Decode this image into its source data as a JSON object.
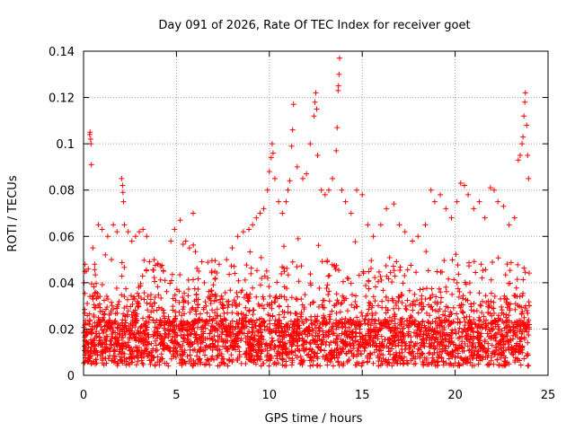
{
  "chart_data": {
    "type": "scatter",
    "title": "Day 091 of 2026, Rate Of TEC Index for receiver goet",
    "xlabel": "GPS time / hours",
    "ylabel": "ROTI / TECUs",
    "xlim": [
      0,
      25
    ],
    "ylim": [
      0,
      0.14
    ],
    "x_ticks": [
      0,
      5,
      10,
      15,
      20,
      25
    ],
    "x_tick_labels": [
      "0",
      "5",
      "10",
      "15",
      "20",
      "25"
    ],
    "y_ticks": [
      0,
      0.02,
      0.04,
      0.06,
      0.08,
      0.1,
      0.12,
      0.14
    ],
    "y_tick_labels": [
      "0",
      "0.02",
      "0.04",
      "0.06",
      "0.08",
      "0.1",
      "0.12",
      "0.14"
    ],
    "grid": true,
    "marker": "plus",
    "marker_color": "#ff0000",
    "data_time_range_hours": [
      0,
      24
    ],
    "series": [
      {
        "points": [
          [
            0.08,
            0.048
          ],
          [
            0.15,
            0.045
          ],
          [
            0.25,
            0.046
          ],
          [
            0.33,
            0.104
          ],
          [
            0.35,
            0.105
          ],
          [
            0.38,
            0.102
          ],
          [
            0.4,
            0.1
          ],
          [
            0.42,
            0.091
          ],
          [
            0.5,
            0.055
          ],
          [
            0.6,
            0.048
          ],
          [
            0.8,
            0.065
          ],
          [
            1.0,
            0.063
          ],
          [
            1.3,
            0.06
          ],
          [
            1.6,
            0.065
          ],
          [
            1.8,
            0.062
          ],
          [
            2.05,
            0.085
          ],
          [
            2.1,
            0.082
          ],
          [
            2.12,
            0.079
          ],
          [
            2.15,
            0.075
          ],
          [
            2.2,
            0.065
          ],
          [
            2.4,
            0.062
          ],
          [
            2.6,
            0.058
          ],
          [
            2.8,
            0.06
          ],
          [
            3.0,
            0.062
          ],
          [
            3.2,
            0.063
          ],
          [
            3.4,
            0.06
          ],
          [
            3.8,
            0.05
          ],
          [
            4.0,
            0.048
          ],
          [
            4.3,
            0.045
          ],
          [
            4.7,
            0.058
          ],
          [
            4.9,
            0.063
          ],
          [
            5.2,
            0.067
          ],
          [
            5.5,
            0.058
          ],
          [
            5.7,
            0.055
          ],
          [
            5.9,
            0.07
          ],
          [
            6.2,
            0.045
          ],
          [
            6.5,
            0.04
          ],
          [
            6.9,
            0.045
          ],
          [
            7.3,
            0.048
          ],
          [
            7.7,
            0.05
          ],
          [
            8.0,
            0.055
          ],
          [
            8.3,
            0.06
          ],
          [
            8.6,
            0.062
          ],
          [
            8.9,
            0.063
          ],
          [
            9.1,
            0.065
          ],
          [
            9.3,
            0.068
          ],
          [
            9.5,
            0.07
          ],
          [
            9.7,
            0.072
          ],
          [
            9.9,
            0.08
          ],
          [
            10.0,
            0.088
          ],
          [
            10.1,
            0.094
          ],
          [
            10.15,
            0.1
          ],
          [
            10.2,
            0.096
          ],
          [
            10.3,
            0.085
          ],
          [
            10.5,
            0.075
          ],
          [
            10.7,
            0.07
          ],
          [
            10.9,
            0.075
          ],
          [
            11.0,
            0.08
          ],
          [
            11.1,
            0.084
          ],
          [
            11.2,
            0.099
          ],
          [
            11.25,
            0.106
          ],
          [
            11.3,
            0.117
          ],
          [
            11.5,
            0.09
          ],
          [
            11.8,
            0.085
          ],
          [
            12.0,
            0.087
          ],
          [
            12.2,
            0.1
          ],
          [
            12.4,
            0.112
          ],
          [
            12.45,
            0.118
          ],
          [
            12.5,
            0.122
          ],
          [
            12.55,
            0.115
          ],
          [
            12.6,
            0.095
          ],
          [
            12.8,
            0.08
          ],
          [
            13.0,
            0.078
          ],
          [
            13.2,
            0.08
          ],
          [
            13.4,
            0.085
          ],
          [
            13.6,
            0.097
          ],
          [
            13.65,
            0.107
          ],
          [
            13.7,
            0.123
          ],
          [
            13.72,
            0.125
          ],
          [
            13.75,
            0.13
          ],
          [
            13.78,
            0.137
          ],
          [
            13.9,
            0.08
          ],
          [
            14.1,
            0.075
          ],
          [
            14.4,
            0.07
          ],
          [
            14.7,
            0.08
          ],
          [
            15.0,
            0.078
          ],
          [
            15.3,
            0.065
          ],
          [
            15.6,
            0.06
          ],
          [
            16.0,
            0.065
          ],
          [
            16.3,
            0.072
          ],
          [
            16.7,
            0.074
          ],
          [
            17.0,
            0.065
          ],
          [
            17.3,
            0.062
          ],
          [
            17.7,
            0.058
          ],
          [
            18.0,
            0.06
          ],
          [
            18.4,
            0.065
          ],
          [
            18.7,
            0.08
          ],
          [
            18.9,
            0.075
          ],
          [
            19.2,
            0.078
          ],
          [
            19.5,
            0.072
          ],
          [
            19.8,
            0.068
          ],
          [
            20.1,
            0.075
          ],
          [
            20.3,
            0.083
          ],
          [
            20.5,
            0.082
          ],
          [
            20.7,
            0.078
          ],
          [
            21.0,
            0.072
          ],
          [
            21.3,
            0.075
          ],
          [
            21.6,
            0.068
          ],
          [
            21.9,
            0.081
          ],
          [
            22.1,
            0.08
          ],
          [
            22.3,
            0.075
          ],
          [
            22.6,
            0.073
          ],
          [
            22.9,
            0.065
          ],
          [
            23.2,
            0.068
          ],
          [
            23.4,
            0.093
          ],
          [
            23.5,
            0.095
          ],
          [
            23.6,
            0.1
          ],
          [
            23.65,
            0.103
          ],
          [
            23.7,
            0.112
          ],
          [
            23.75,
            0.118
          ],
          [
            23.78,
            0.122
          ],
          [
            23.85,
            0.108
          ],
          [
            23.9,
            0.095
          ],
          [
            23.95,
            0.085
          ]
        ]
      }
    ]
  }
}
